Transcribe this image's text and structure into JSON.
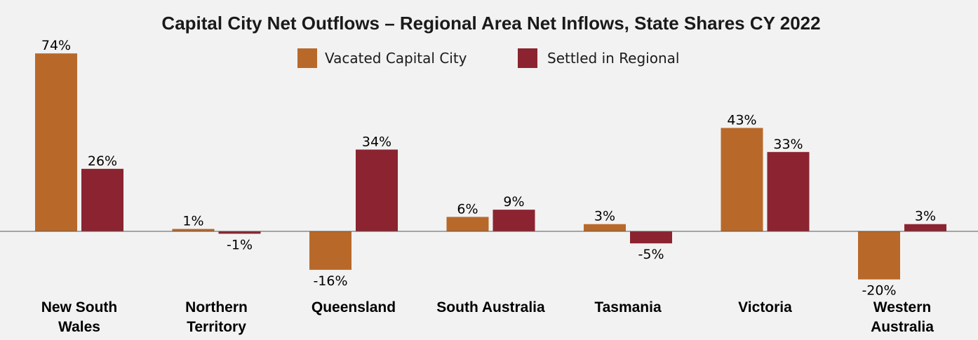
{
  "chart_data": {
    "type": "bar",
    "title": "Capital City Net Outflows – Regional Area Net Inflows, State Shares CY 2022",
    "categories": [
      "New South Wales",
      "Northern Territory",
      "Queensland",
      "South Australia",
      "Tasmania",
      "Victoria",
      "Western Australia"
    ],
    "category_lines": [
      [
        "New South",
        "Wales"
      ],
      [
        "Northern",
        "Territory"
      ],
      [
        "Queensland"
      ],
      [
        "South Australia"
      ],
      [
        "Tasmania"
      ],
      [
        "Victoria"
      ],
      [
        "Western",
        "Australia"
      ]
    ],
    "series": [
      {
        "name": "Vacated Capital City",
        "color": "#b8692a",
        "values": [
          74,
          1,
          -16,
          6,
          3,
          43,
          -20
        ],
        "labels": [
          "74%",
          "1%",
          "-16%",
          "6%",
          "3%",
          "43%",
          "-20%"
        ]
      },
      {
        "name": "Settled in Regional",
        "color": "#8b2430",
        "values": [
          26,
          -1,
          34,
          9,
          -5,
          33,
          3
        ],
        "labels": [
          "26%",
          "-1%",
          "34%",
          "9%",
          "-5%",
          "33%",
          "3%"
        ]
      }
    ],
    "ylim": [
      -28,
      80
    ],
    "legend_position": "top-center",
    "grid": false,
    "axis_color": "#555555"
  }
}
